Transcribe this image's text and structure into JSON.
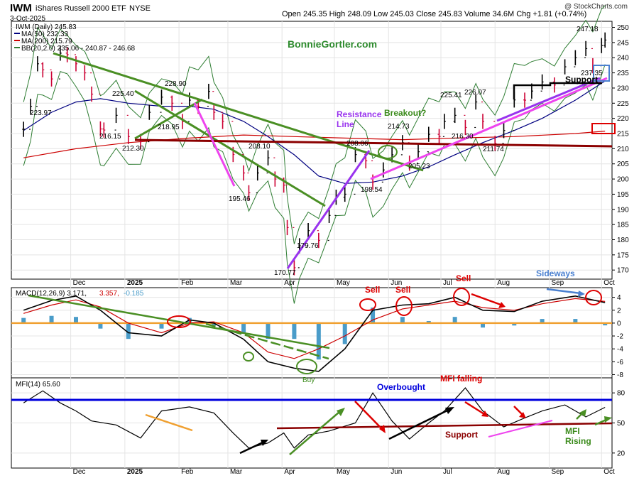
{
  "header": {
    "symbol": "IWM",
    "name": "iShares Russell 2000 ETF",
    "exchange": "NYSE",
    "date": "3-Oct-2025",
    "ohlc": "Open 245.35  High 248.09  Low 245.03  Close 245.83  Volume 34.6M  Chg +1.81 (+0.74%)",
    "watermark": "@ StockCharts.com",
    "author": "BonnieGortler.com"
  },
  "colors": {
    "price_bar_up": "#000000",
    "price_bar_down": "#cc0033",
    "ma50": "#000080",
    "ma200": "#cc0000",
    "bollinger": "#2e7d32",
    "bollinger_mid": "#2e7d32",
    "support_brown": "#8b0000",
    "trend_green": "#4a8f24",
    "trend_magenta": "#ee44ee",
    "trend_purple": "#9933ee",
    "macd_line": "#000000",
    "macd_signal": "#cc0000",
    "macd_hist": "#4a9cc9",
    "macd_zero": "#f0a030",
    "mfi_line": "#000000",
    "overbought_line": "#0000dd",
    "annotation_red": "#dd0000",
    "annotation_blue": "#4a80d0"
  },
  "chart_data": [
    {
      "type": "line",
      "panel": "price",
      "title": "IWM (Daily) 245.83",
      "legend": [
        {
          "label": "IWM (Daily) 245.83",
          "color": "#000000"
        },
        {
          "label": "MA(50) 232.33",
          "color": "#000080"
        },
        {
          "label": "MA(200) 215.79",
          "color": "#cc0000"
        },
        {
          "label": "BB(20,2.0) 235.06 - 240.87 - 246.68",
          "color": "#2e7d32"
        }
      ],
      "x_labels": [
        "Dec",
        "2025",
        "Feb",
        "Mar",
        "Apr",
        "May",
        "Jun",
        "Jul",
        "Aug",
        "Sep",
        "Oct"
      ],
      "ylim": [
        167,
        252
      ],
      "y_ticks": [
        170,
        175,
        180,
        185,
        190,
        195,
        200,
        205,
        210,
        215,
        220,
        225,
        230,
        235,
        240,
        245,
        250
      ],
      "series": [
        {
          "name": "IWM",
          "x": [
            "2024-11-04",
            "2024-11-08",
            "2024-11-12",
            "2024-11-15",
            "2024-11-20",
            "2024-11-25",
            "2024-11-29",
            "2024-12-04",
            "2024-12-09",
            "2024-12-13",
            "2024-12-18",
            "2024-12-20",
            "2024-12-27",
            "2025-01-03",
            "2025-01-10",
            "2025-01-15",
            "2025-01-22",
            "2025-01-28",
            "2025-02-03",
            "2025-02-07",
            "2025-02-12",
            "2025-02-18",
            "2025-02-21",
            "2025-02-26",
            "2025-03-04",
            "2025-03-10",
            "2025-03-13",
            "2025-03-18",
            "2025-03-24",
            "2025-03-28",
            "2025-04-02",
            "2025-04-04",
            "2025-04-08",
            "2025-04-11",
            "2025-04-16",
            "2025-04-22",
            "2025-04-28",
            "2025-05-02",
            "2025-05-07",
            "2025-05-13",
            "2025-05-19",
            "2025-05-23",
            "2025-05-29",
            "2025-06-03",
            "2025-06-09",
            "2025-06-13",
            "2025-06-18",
            "2025-06-24",
            "2025-06-30",
            "2025-07-03",
            "2025-07-09",
            "2025-07-15",
            "2025-07-21",
            "2025-07-25",
            "2025-08-01",
            "2025-08-06",
            "2025-08-12",
            "2025-08-18",
            "2025-08-22",
            "2025-08-28",
            "2025-09-04",
            "2025-09-10",
            "2025-09-16",
            "2025-09-22",
            "2025-09-26",
            "2025-10-01",
            "2025-10-03"
          ],
          "values": [
            216.4,
            223.97,
            238,
            236,
            233,
            241.5,
            241,
            238,
            235,
            228,
            216.5,
            216.15,
            221,
            214,
            212.3,
            222,
            227,
            225,
            218.95,
            226,
            224,
            228.9,
            222,
            219,
            208.1,
            202,
            195.46,
            202,
            207,
            200,
            198,
            184,
            170.77,
            178,
            183,
            179.76,
            188,
            194,
            195,
            208.06,
            206,
            199,
            203,
            208,
            212,
            205.23,
            209,
            214.73,
            214,
            219,
            221,
            217,
            225.41,
            219,
            211.74,
            216,
            226.07,
            226,
            229,
            232,
            231,
            237,
            240,
            243,
            237.35,
            244,
            245.83
          ]
        },
        {
          "name": "MA(50)",
          "x": [
            "2024-11-04",
            "2024-11-20",
            "2024-12-04",
            "2024-12-18",
            "2025-01-03",
            "2025-01-22",
            "2025-02-07",
            "2025-02-21",
            "2025-03-10",
            "2025-03-24",
            "2025-04-08",
            "2025-04-22",
            "2025-05-07",
            "2025-05-23",
            "2025-06-09",
            "2025-06-24",
            "2025-07-09",
            "2025-07-25",
            "2025-08-12",
            "2025-08-28",
            "2025-09-16",
            "2025-10-03"
          ],
          "values": [
            216,
            222,
            225.4,
            226.5,
            225,
            224,
            224,
            223,
            219,
            214,
            208,
            201,
            198.54,
            199,
            201,
            204,
            208,
            212,
            216,
            220,
            226,
            232.33
          ]
        },
        {
          "name": "MA(200)",
          "x": [
            "2024-11-04",
            "2024-12-04",
            "2025-01-03",
            "2025-02-07",
            "2025-03-10",
            "2025-04-08",
            "2025-05-07",
            "2025-06-09",
            "2025-07-09",
            "2025-08-12",
            "2025-09-16",
            "2025-10-03"
          ],
          "values": [
            207,
            210,
            212,
            213.5,
            214.5,
            214,
            213.5,
            213,
            213.5,
            214,
            215,
            215.79
          ]
        }
      ],
      "annotations": [
        "223.97",
        "225.40",
        "228.90",
        "218.95",
        "216.15",
        "212.30",
        "208.10",
        "195.46",
        "179.76",
        "170.77",
        "208.06",
        "198.54",
        "214.73",
        "205.23",
        "225.41",
        "226.07",
        "216.30",
        "211.74",
        "247.18",
        "237.35",
        "Resistance",
        "Line",
        "Breakout?",
        "Support"
      ]
    },
    {
      "type": "line",
      "panel": "macd",
      "title": "MACD(12,26,9) 3.171, 3.357, -0.185",
      "legend": [
        {
          "label": "MACD(12,26,9) 3.171,",
          "color": "#000000"
        },
        {
          "label": "3.357,",
          "color": "#cc0000"
        },
        {
          "label": "-0.185",
          "color": "#4a9cc9"
        }
      ],
      "ylim": [
        -8.5,
        5.5
      ],
      "y_ticks": [
        -8,
        -6,
        -4,
        -2,
        0,
        2,
        4
      ],
      "series": [
        {
          "name": "MACD",
          "x": [
            "2024-11-04",
            "2024-11-20",
            "2024-12-04",
            "2024-12-18",
            "2025-01-03",
            "2025-01-22",
            "2025-02-07",
            "2025-02-21",
            "2025-03-10",
            "2025-03-24",
            "2025-04-08",
            "2025-04-22",
            "2025-05-07",
            "2025-05-23",
            "2025-06-09",
            "2025-06-24",
            "2025-07-09",
            "2025-07-25",
            "2025-08-12",
            "2025-08-28",
            "2025-09-16",
            "2025-10-03"
          ],
          "values": [
            2,
            3.5,
            4.2,
            2,
            -1.5,
            -2,
            0.5,
            0,
            -2.5,
            -6,
            -7,
            -7.5,
            -4,
            2,
            2.8,
            3,
            4,
            2,
            1.8,
            3.4,
            4.2,
            3.171
          ]
        },
        {
          "name": "Signal",
          "x": [
            "2024-11-04",
            "2024-11-20",
            "2024-12-04",
            "2024-12-18",
            "2025-01-03",
            "2025-01-22",
            "2025-02-07",
            "2025-02-21",
            "2025-03-10",
            "2025-03-24",
            "2025-04-08",
            "2025-04-22",
            "2025-05-07",
            "2025-05-23",
            "2025-06-09",
            "2025-06-24",
            "2025-07-09",
            "2025-07-25",
            "2025-08-12",
            "2025-08-28",
            "2025-09-16",
            "2025-10-03"
          ],
          "values": [
            1.5,
            2.8,
            3.6,
            2.5,
            0,
            -1.5,
            0,
            0.2,
            -1.5,
            -4.5,
            -5.5,
            -4,
            -2,
            0.5,
            2.2,
            2.8,
            3.4,
            2.4,
            2,
            3,
            3.8,
            3.357
          ]
        }
      ],
      "annotations": [
        "Sell",
        "Sell",
        "Sell",
        "Sideways",
        "Buy"
      ]
    },
    {
      "type": "line",
      "panel": "mfi",
      "title": "MFI(14) 65.60",
      "ylim": [
        5,
        95
      ],
      "y_ticks": [
        20,
        50,
        80
      ],
      "series": [
        {
          "name": "MFI(14)",
          "x": [
            "2024-11-04",
            "2024-11-15",
            "2024-11-25",
            "2024-12-04",
            "2024-12-13",
            "2024-12-27",
            "2025-01-10",
            "2025-01-22",
            "2025-02-07",
            "2025-02-21",
            "2025-03-04",
            "2025-03-13",
            "2025-03-24",
            "2025-04-02",
            "2025-04-08",
            "2025-04-16",
            "2025-04-28",
            "2025-05-13",
            "2025-05-23",
            "2025-06-03",
            "2025-06-13",
            "2025-06-24",
            "2025-07-03",
            "2025-07-15",
            "2025-07-25",
            "2025-08-06",
            "2025-08-18",
            "2025-08-28",
            "2025-09-10",
            "2025-09-22",
            "2025-10-03"
          ],
          "values": [
            70,
            82,
            70,
            62,
            52,
            48,
            35,
            62,
            66,
            60,
            40,
            25,
            30,
            40,
            25,
            38,
            42,
            50,
            80,
            52,
            34,
            50,
            62,
            85,
            62,
            46,
            55,
            62,
            68,
            56,
            65.6
          ]
        }
      ],
      "annotations": [
        "Overbought",
        "MFI falling",
        "Support",
        "MFI",
        "Rising"
      ]
    }
  ]
}
